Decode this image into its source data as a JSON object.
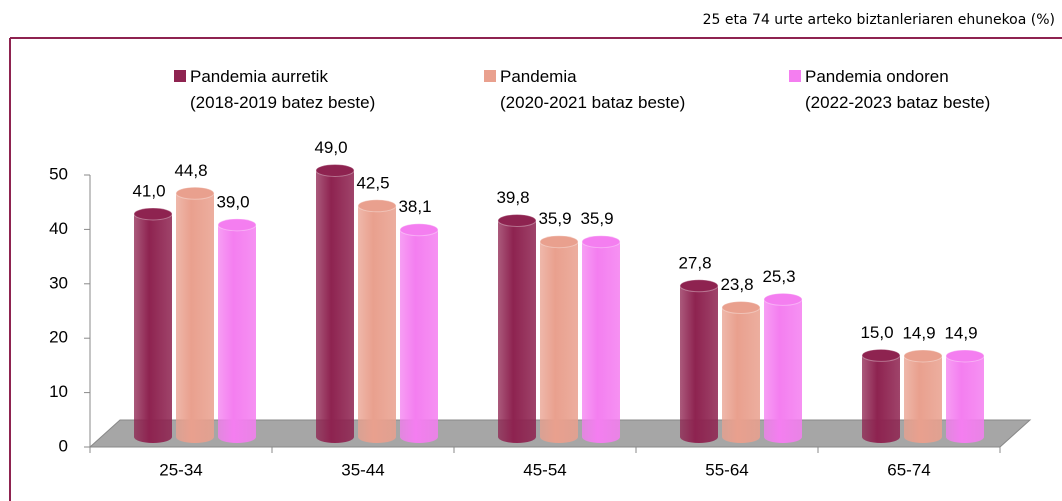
{
  "chart_data": {
    "type": "bar",
    "subtitle": "25 eta 74 urte arteko biztanleriaren ehunekoa (%)",
    "categories": [
      "25-34",
      "35-44",
      "45-54",
      "55-64",
      "65-74"
    ],
    "series": [
      {
        "name": "Pandemia aurretik\n(2018-2019 batez beste)",
        "color": "#8e2350",
        "values": [
          41.0,
          49.0,
          39.8,
          27.8,
          15.0
        ],
        "value_labels": [
          "41,0",
          "49,0",
          "39,8",
          "27,8",
          "15,0"
        ]
      },
      {
        "name": "Pandemia\n(2020-2021 bataz beste)",
        "color": "#e9a08e",
        "values": [
          44.8,
          42.5,
          35.9,
          23.8,
          14.9
        ],
        "value_labels": [
          "44,8",
          "42,5",
          "35,9",
          "23,8",
          "14,9"
        ]
      },
      {
        "name": "Pandemia ondoren\n(2022-2023 bataz beste)",
        "color": "#f47ef0",
        "values": [
          39.0,
          38.1,
          35.9,
          25.3,
          14.9
        ],
        "value_labels": [
          "39,0",
          "38,1",
          "35,9",
          "25,3",
          "14,9"
        ]
      }
    ],
    "ylim": [
      0,
      50
    ],
    "yticks": [
      0,
      10,
      20,
      30,
      40,
      50
    ]
  }
}
